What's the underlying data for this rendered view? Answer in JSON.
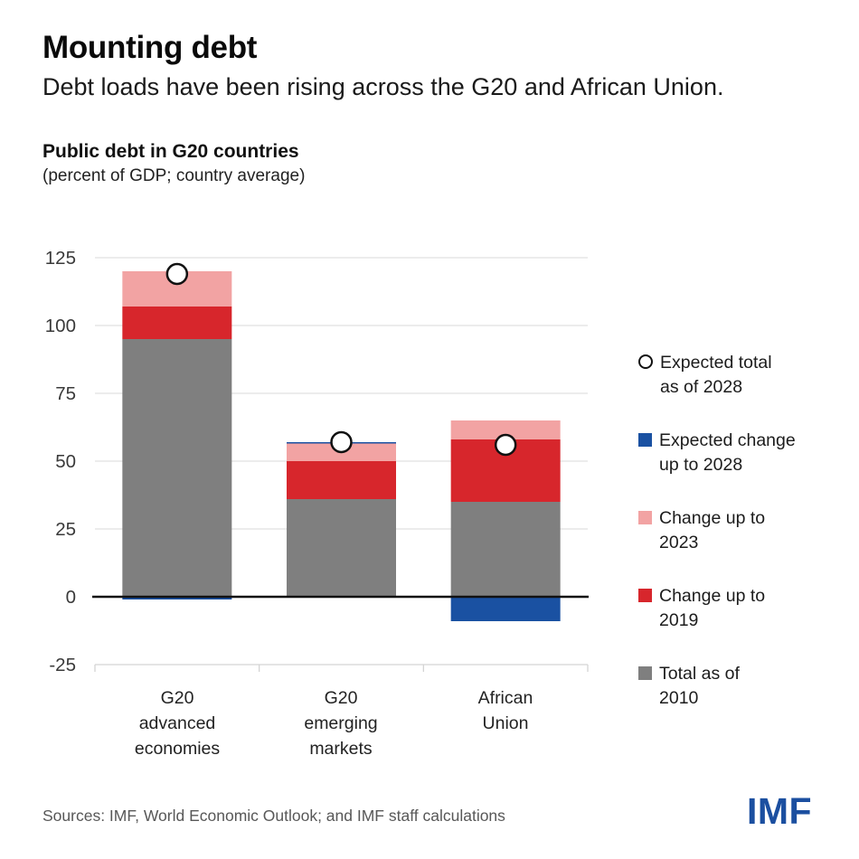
{
  "page": {
    "title": "Mounting debt",
    "subtitle": "Debt loads have been rising across the G20 and African Union.",
    "footer_source": "Sources: IMF, World Economic Outlook; and IMF staff calculations",
    "brand_logo": "IMF",
    "brand_color": "#1b4fa0"
  },
  "chart_data": {
    "type": "bar",
    "stacked": true,
    "title": "Public debt in G20 countries",
    "subtitle": "(percent of GDP; country average)",
    "categories": [
      "G20\nadvanced\neconomies",
      "G20\nemerging\nmarkets",
      "African\nUnion"
    ],
    "series": [
      {
        "name": "Total as of 2010",
        "color": "#7f7f7f",
        "values": [
          95,
          36,
          35
        ]
      },
      {
        "name": "Change up to 2019",
        "color": "#d7262c",
        "values": [
          12,
          14,
          23
        ]
      },
      {
        "name": "Change up to 2023",
        "color": "#f2a3a3",
        "values": [
          13,
          6.5,
          7
        ]
      },
      {
        "name": "Expected change up to 2028",
        "color": "#1a51a2",
        "values": [
          -1,
          0.5,
          -9
        ]
      }
    ],
    "markers": {
      "name": "Expected total as of 2028",
      "values": [
        119,
        57,
        56
      ],
      "style": "white-circle-black-outline"
    },
    "ylim": [
      -25,
      125
    ],
    "yticks": [
      125,
      100,
      75,
      50,
      25,
      0,
      -25
    ],
    "grid": "horizontal light gray lines; solid black zero line; bottom axis at -25 with category ticks",
    "legend_position": "right",
    "legend": [
      {
        "label": "Expected total\nas of 2028",
        "swatch": "circle-outline",
        "color": "#ffffff"
      },
      {
        "label": "Expected change\nup to 2028",
        "swatch": "square",
        "color": "#1a51a2"
      },
      {
        "label": "Change up to\n2023",
        "swatch": "square",
        "color": "#f2a3a3"
      },
      {
        "label": "Change up to\n2019",
        "swatch": "square",
        "color": "#d7262c"
      },
      {
        "label": "Total as of\n2010",
        "swatch": "square",
        "color": "#7f7f7f"
      }
    ],
    "axis_colors": {
      "grid": "#e0e0e0",
      "bottom_axis": "#d4d4d4",
      "zero_line": "#111111",
      "tick_label": "#3a3a3a"
    }
  }
}
